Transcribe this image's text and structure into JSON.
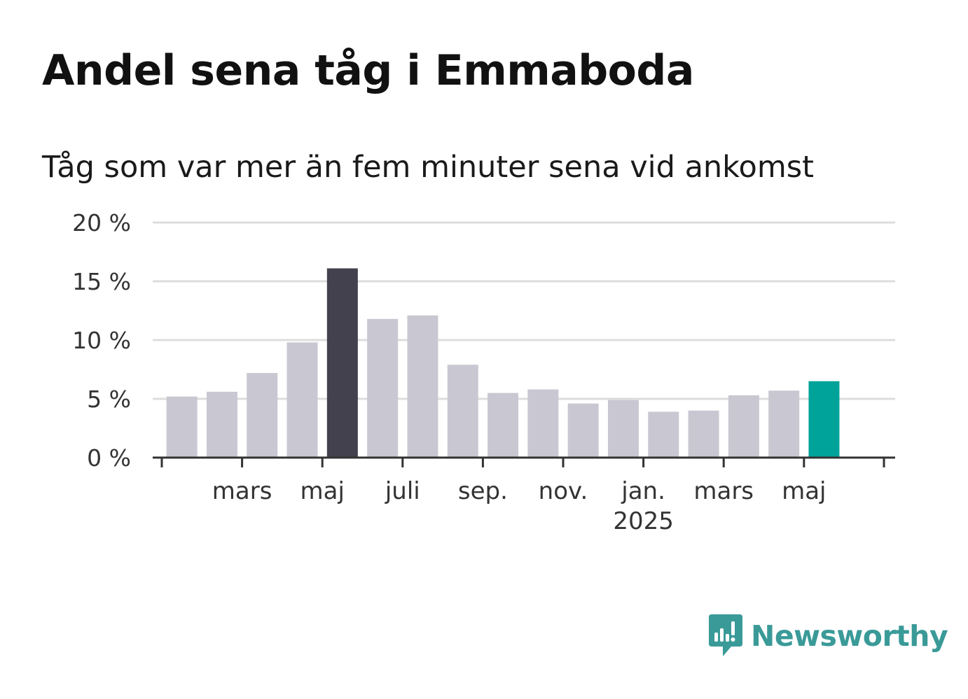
{
  "title": "Andel sena tåg i Emmaboda",
  "subtitle": "Tåg som var mer än fem minuter sena vid ankomst",
  "brand": "Newsworthy",
  "colors": {
    "bar_default": "#c9c8d2",
    "bar_highlight": "#42414d",
    "bar_latest": "#00a39a",
    "grid": "#dddddd",
    "axis": "#333333",
    "brand": "#3a9a98"
  },
  "chart_data": {
    "type": "bar",
    "title": "Andel sena tåg i Emmaboda",
    "subtitle": "Tåg som var mer än fem minuter sena vid ankomst",
    "xlabel": "",
    "ylabel": "",
    "ylim": [
      0,
      20
    ],
    "y_ticks": [
      "0 %",
      "5 %",
      "10 %",
      "15 %",
      "20 %"
    ],
    "y_tick_values": [
      0,
      5,
      10,
      15,
      20
    ],
    "grid": true,
    "x_tick_labels": [
      {
        "month": 3,
        "label": "mars"
      },
      {
        "month": 5,
        "label": "maj"
      },
      {
        "month": 7,
        "label": "juli"
      },
      {
        "month": 9,
        "label": "sep."
      },
      {
        "month": 11,
        "label": "nov."
      },
      {
        "month": 13,
        "label": "jan.",
        "sublabel": "2025"
      },
      {
        "month": 15,
        "label": "mars"
      },
      {
        "month": 17,
        "label": "maj"
      }
    ],
    "categories": [
      "2024-02",
      "2024-03",
      "2024-04",
      "2024-05",
      "2024-06",
      "2024-07",
      "2024-08",
      "2024-09",
      "2024-10",
      "2024-11",
      "2024-12",
      "2025-01",
      "2025-02",
      "2025-03",
      "2025-04",
      "2025-05",
      "2025-06"
    ],
    "values": [
      5.2,
      5.6,
      7.2,
      9.8,
      16.1,
      11.8,
      12.1,
      7.9,
      5.5,
      5.8,
      4.6,
      4.9,
      3.9,
      4.0,
      5.3,
      5.7,
      6.5
    ],
    "highlight": {
      "max_index": 4,
      "latest_index": 16
    }
  }
}
